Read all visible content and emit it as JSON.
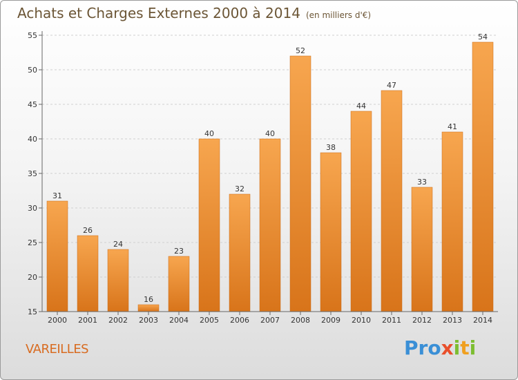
{
  "header": {
    "title": "Achats et Charges Externes 2000 à 2014",
    "unit": "(en milliers d'€)"
  },
  "footer": {
    "commune": "VAREILLES",
    "logo": {
      "text": "Proxiti",
      "letters": [
        "P",
        "r",
        "o",
        "x",
        "i",
        "t",
        "i"
      ],
      "colors": [
        "#3a8fd6",
        "#3a8fd6",
        "#3a8fd6",
        "#e94f2b",
        "#7cbd30",
        "#f0a020",
        "#7cbd30"
      ]
    }
  },
  "chart_data": {
    "type": "bar",
    "title": "Achats et Charges Externes 2000 à 2014",
    "subtitle": "(en milliers d'€)",
    "categories": [
      "2000",
      "2001",
      "2002",
      "2003",
      "2004",
      "2005",
      "2006",
      "2007",
      "2008",
      "2009",
      "2010",
      "2011",
      "2012",
      "2013",
      "2014"
    ],
    "values": [
      31,
      26,
      24,
      16,
      23,
      40,
      32,
      40,
      52,
      38,
      44,
      47,
      33,
      41,
      54
    ],
    "ylim": [
      15,
      55
    ],
    "yticks": [
      15,
      20,
      25,
      30,
      35,
      40,
      45,
      50,
      55
    ],
    "grid": "horizontal-dashed",
    "colors": {
      "bar_top": "#f7a64f",
      "bar_bottom": "#d8741a",
      "bar_edge": "#c86a18",
      "grid": "#cfcfcf"
    }
  }
}
